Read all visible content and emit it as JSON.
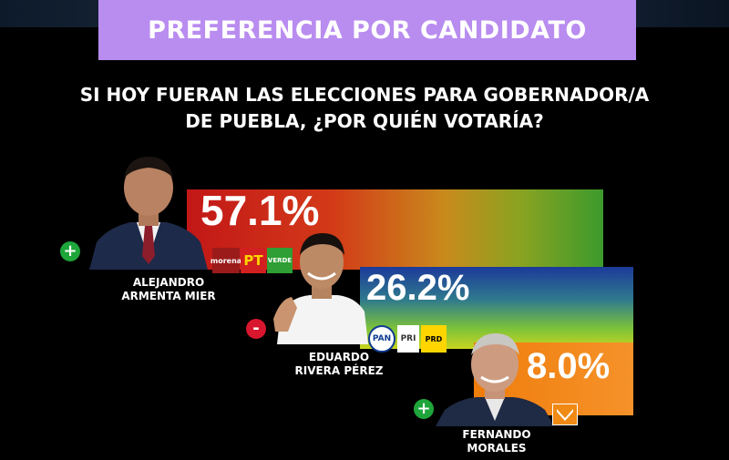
{
  "header": {
    "title": "PREFERENCIA POR CANDIDATO"
  },
  "question": {
    "line1": "SI HOY FUERAN LAS ELECCIONES PARA GOBERNADOR/A",
    "line2": "DE PUEBLA, ¿POR QUIÉN VOTARÍA?"
  },
  "chart_data": {
    "type": "bar",
    "categories": [
      "ALEJANDRO ARMENTA MIER",
      "EDUARDO RIVERA PÉREZ",
      "FERNANDO MORALES"
    ],
    "values": [
      57.1,
      26.2,
      8.0
    ],
    "value_labels": [
      "57.1%",
      "26.2%",
      "8.0%"
    ]
  },
  "candidates": [
    {
      "first_name": "ALEJANDRO",
      "last_name": "ARMENTA MIER",
      "pct_label": "57.1%",
      "sign": "+",
      "sign_color": "#1ea63a",
      "parties": [
        "morena",
        "PT",
        "VERDE"
      ]
    },
    {
      "first_name": "EDUARDO",
      "last_name": "RIVERA PÉREZ",
      "pct_label": "26.2%",
      "sign": "-",
      "sign_color": "#d8162d",
      "parties": [
        "PAN",
        "PRI",
        "PRD"
      ]
    },
    {
      "first_name": "FERNANDO",
      "last_name": "MORALES",
      "pct_label": "8.0%",
      "sign": "+",
      "sign_color": "#1ea63a",
      "parties": []
    }
  ],
  "colors": {
    "banner": "#b98cf0",
    "background": "#000000"
  }
}
